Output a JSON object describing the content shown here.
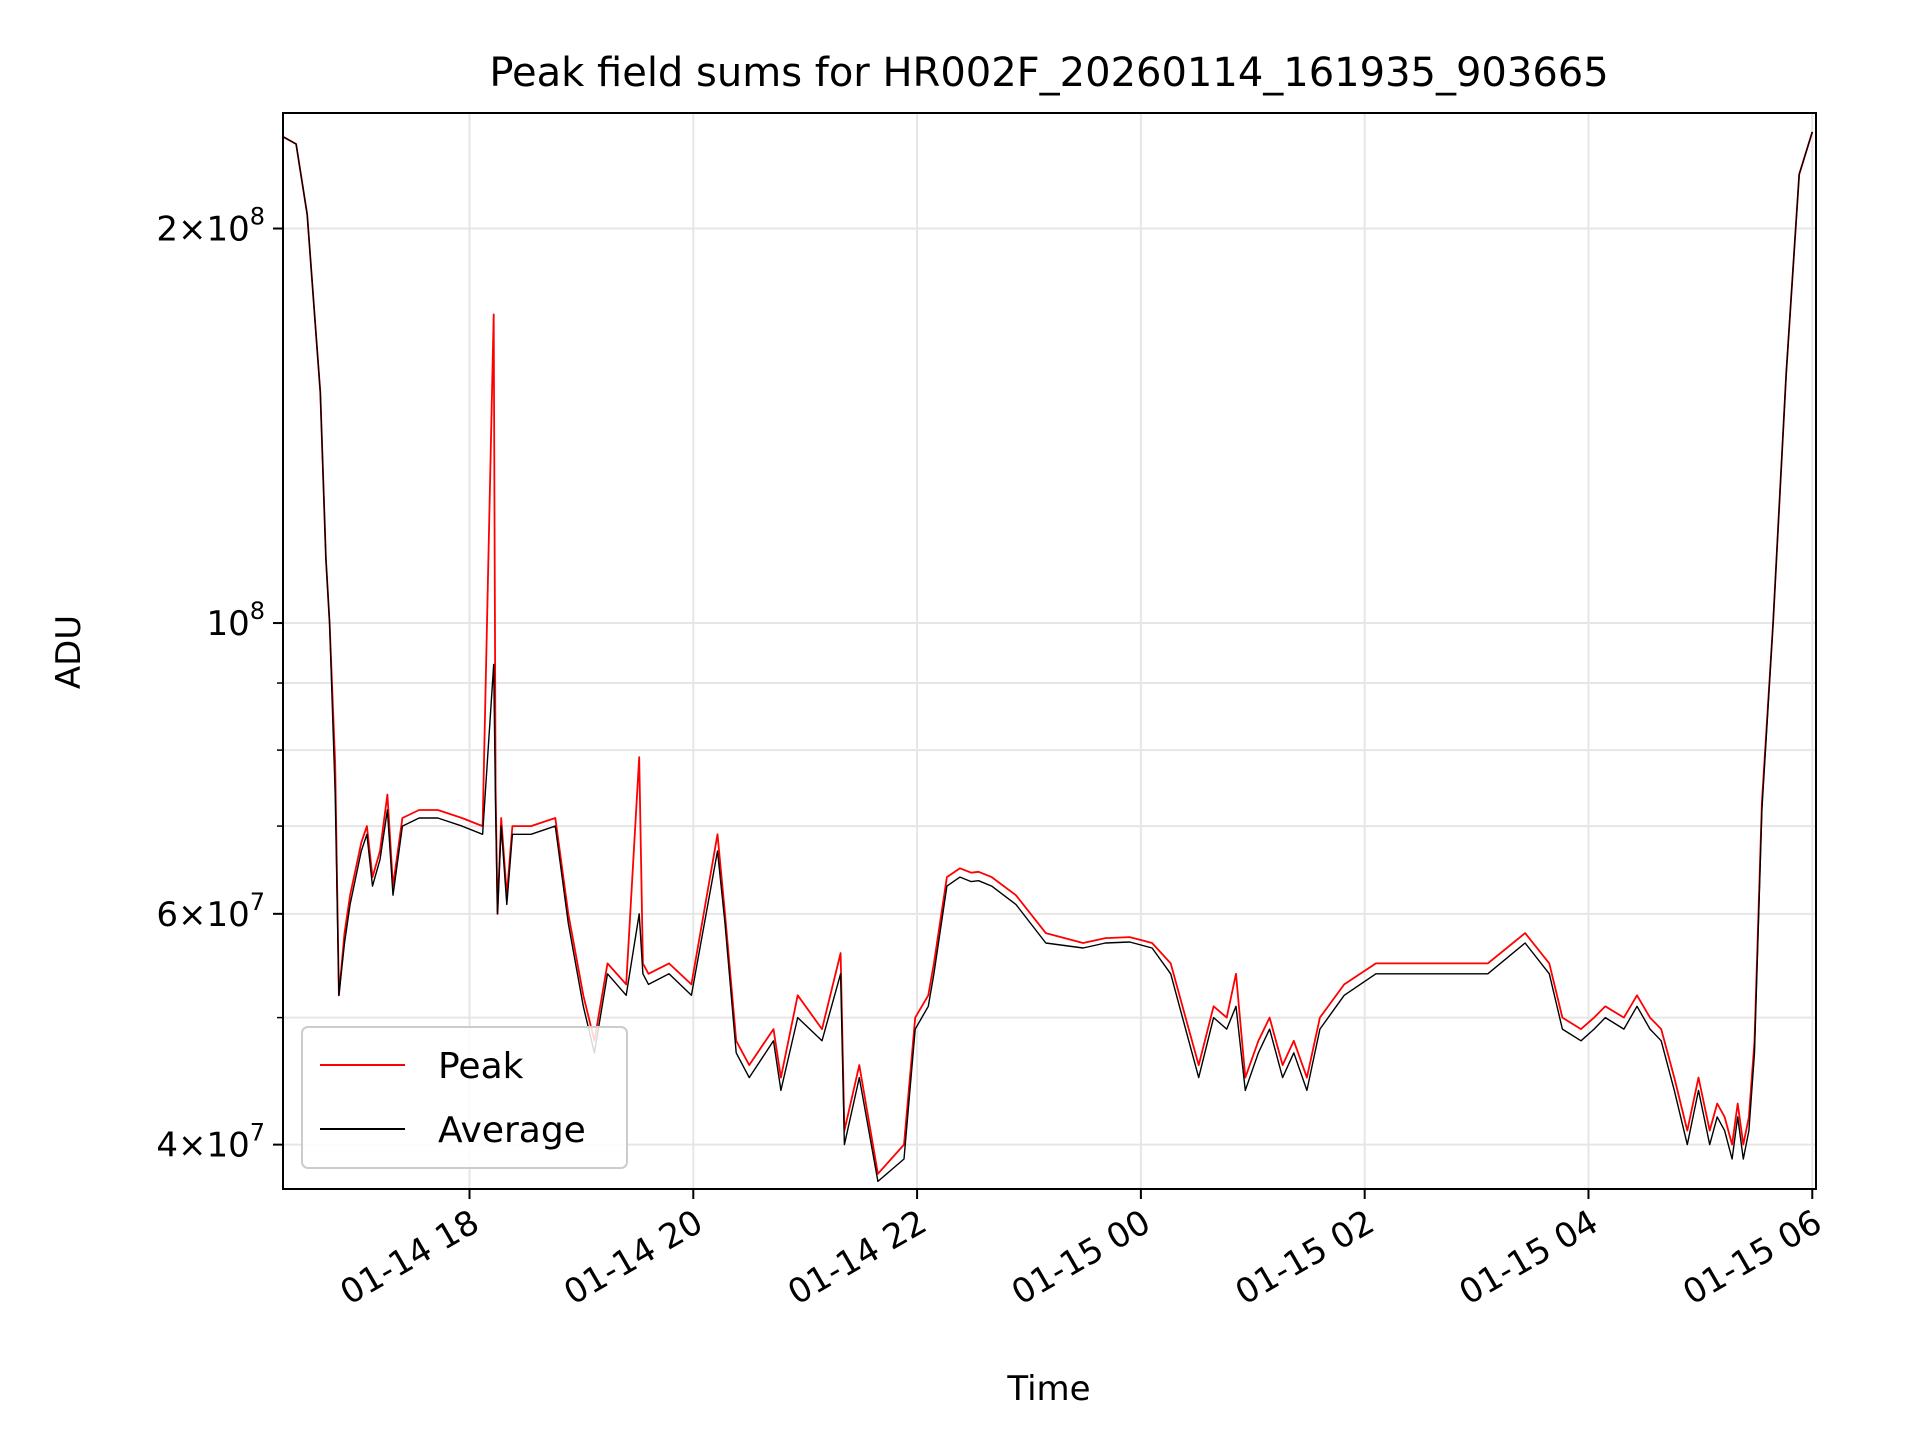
{
  "chart_data": {
    "type": "line",
    "title": "Peak field sums for HR002F_20260114_161935_903665",
    "xlabel": "Time",
    "ylabel": "ADU",
    "x_start": "01-14 16:20",
    "x_end": "01-15 06:00",
    "xlim": [
      "01-14 16:20",
      "01-15 06:02"
    ],
    "ylim": [
      37000000,
      245000000
    ],
    "yscale": "log",
    "grid": true,
    "legend_position": "lower-left",
    "x_ticks": [
      {
        "label": "01-14 18",
        "value": "01-14 18:00"
      },
      {
        "label": "01-14 20",
        "value": "01-14 20:00"
      },
      {
        "label": "01-14 22",
        "value": "01-14 22:00"
      },
      {
        "label": "01-15 00",
        "value": "01-15 00:00"
      },
      {
        "label": "01-15 02",
        "value": "01-15 02:00"
      },
      {
        "label": "01-15 04",
        "value": "01-15 04:00"
      },
      {
        "label": "01-15 06",
        "value": "01-15 06:00"
      }
    ],
    "y_ticks": [
      {
        "base": "4",
        "exp": "7",
        "value": 40000000
      },
      {
        "base": "6",
        "exp": "7",
        "value": 60000000
      },
      {
        "base": "",
        "exp": "8",
        "value": 100000000
      },
      {
        "base": "2",
        "exp": "8",
        "value": 200000000
      }
    ],
    "y_minor_ticks": [
      50000000,
      70000000,
      80000000,
      90000000
    ],
    "series": [
      {
        "name": "Peak",
        "color": "#ff0000",
        "x": [
          "01-14 16:20",
          "01-14 16:27",
          "01-14 16:33",
          "01-14 16:40",
          "01-14 16:43",
          "01-14 16:45",
          "01-14 16:48",
          "01-14 16:50",
          "01-14 16:53",
          "01-14 16:56",
          "01-14 17:02",
          "01-14 17:05",
          "01-14 17:08",
          "01-14 17:12",
          "01-14 17:16",
          "01-14 17:19",
          "01-14 17:24",
          "01-14 17:33",
          "01-14 17:43",
          "01-14 17:56",
          "01-14 18:07",
          "01-14 18:13",
          "01-14 18:14",
          "01-14 18:15",
          "01-14 18:17",
          "01-14 18:20",
          "01-14 18:23",
          "01-14 18:33",
          "01-14 18:46",
          "01-14 18:53",
          "01-14 19:01",
          "01-14 19:07",
          "01-14 19:14",
          "01-14 19:24",
          "01-14 19:31",
          "01-14 19:33",
          "01-14 19:36",
          "01-14 19:47",
          "01-14 19:59",
          "01-14 20:13",
          "01-14 20:17",
          "01-14 20:23",
          "01-14 20:30",
          "01-14 20:43",
          "01-14 20:47",
          "01-14 20:56",
          "01-14 21:09",
          "01-14 21:19",
          "01-14 21:21",
          "01-14 21:29",
          "01-14 21:39",
          "01-14 21:53",
          "01-14 21:59",
          "01-14 22:06",
          "01-14 22:09",
          "01-14 22:16",
          "01-14 22:23",
          "01-14 22:29",
          "01-14 22:33",
          "01-14 22:40",
          "01-14 22:53",
          "01-14 23:09",
          "01-14 23:29",
          "01-14 23:41",
          "01-14 23:54",
          "01-15 00:06",
          "01-15 00:16",
          "01-15 00:24",
          "01-15 00:31",
          "01-15 00:39",
          "01-15 00:46",
          "01-15 00:51",
          "01-15 00:56",
          "01-15 01:03",
          "01-15 01:09",
          "01-15 01:16",
          "01-15 01:22",
          "01-15 01:29",
          "01-15 01:36",
          "01-15 01:49",
          "01-15 02:06",
          "01-15 02:23",
          "01-15 02:46",
          "01-15 03:06",
          "01-15 03:26",
          "01-15 03:39",
          "01-15 03:46",
          "01-15 03:56",
          "01-15 04:03",
          "01-15 04:09",
          "01-15 04:19",
          "01-15 04:26",
          "01-15 04:33",
          "01-15 04:39",
          "01-15 04:46",
          "01-15 04:53",
          "01-15 04:59",
          "01-15 05:05",
          "01-15 05:09",
          "01-15 05:13",
          "01-15 05:17",
          "01-15 05:20",
          "01-15 05:23",
          "01-15 05:26",
          "01-15 05:29",
          "01-15 05:33",
          "01-15 05:39",
          "01-15 05:46",
          "01-15 05:53",
          "01-15 06:00"
        ],
        "y": [
          235000000,
          232000000,
          205000000,
          150000000,
          112000000,
          100000000,
          78000000,
          52000000,
          58000000,
          62000000,
          68000000,
          70000000,
          64000000,
          67000000,
          74000000,
          63000000,
          71000000,
          72000000,
          72000000,
          71000000,
          70000000,
          172000000,
          75000000,
          60000000,
          71000000,
          62000000,
          70000000,
          70000000,
          71000000,
          60000000,
          52000000,
          48000000,
          55000000,
          53000000,
          79000000,
          55000000,
          54000000,
          55000000,
          53000000,
          69000000,
          60000000,
          48000000,
          46000000,
          49000000,
          45000000,
          52000000,
          49000000,
          56000000,
          41000000,
          46000000,
          38000000,
          40000000,
          50000000,
          52000000,
          55000000,
          64000000,
          65000000,
          64500000,
          64600000,
          64000000,
          62000000,
          58000000,
          57000000,
          57500000,
          57600000,
          57000000,
          55000000,
          50000000,
          46000000,
          51000000,
          50000000,
          54000000,
          45000000,
          48000000,
          50000000,
          46000000,
          48000000,
          45000000,
          50000000,
          53000000,
          55000000,
          55000000,
          55000000,
          55000000,
          58000000,
          55000000,
          50000000,
          49000000,
          50000000,
          51000000,
          50000000,
          52000000,
          50000000,
          49000000,
          45000000,
          41000000,
          45000000,
          41000000,
          43000000,
          42000000,
          40000000,
          43000000,
          40000000,
          42000000,
          48000000,
          73000000,
          100000000,
          155000000,
          220000000,
          237000000
        ]
      },
      {
        "name": "Average",
        "color": "#000000",
        "x": [
          "01-14 16:20",
          "01-14 16:27",
          "01-14 16:33",
          "01-14 16:40",
          "01-14 16:43",
          "01-14 16:45",
          "01-14 16:48",
          "01-14 16:50",
          "01-14 16:53",
          "01-14 16:56",
          "01-14 17:02",
          "01-14 17:05",
          "01-14 17:08",
          "01-14 17:12",
          "01-14 17:16",
          "01-14 17:19",
          "01-14 17:24",
          "01-14 17:33",
          "01-14 17:43",
          "01-14 17:56",
          "01-14 18:07",
          "01-14 18:13",
          "01-14 18:14",
          "01-14 18:15",
          "01-14 18:17",
          "01-14 18:20",
          "01-14 18:23",
          "01-14 18:33",
          "01-14 18:46",
          "01-14 18:53",
          "01-14 19:01",
          "01-14 19:07",
          "01-14 19:14",
          "01-14 19:24",
          "01-14 19:31",
          "01-14 19:33",
          "01-14 19:36",
          "01-14 19:47",
          "01-14 19:59",
          "01-14 20:13",
          "01-14 20:17",
          "01-14 20:23",
          "01-14 20:30",
          "01-14 20:43",
          "01-14 20:47",
          "01-14 20:56",
          "01-14 21:09",
          "01-14 21:19",
          "01-14 21:21",
          "01-14 21:29",
          "01-14 21:39",
          "01-14 21:53",
          "01-14 21:59",
          "01-14 22:06",
          "01-14 22:09",
          "01-14 22:16",
          "01-14 22:23",
          "01-14 22:29",
          "01-14 22:33",
          "01-14 22:40",
          "01-14 22:53",
          "01-14 23:09",
          "01-14 23:29",
          "01-14 23:41",
          "01-14 23:54",
          "01-15 00:06",
          "01-15 00:16",
          "01-15 00:24",
          "01-15 00:31",
          "01-15 00:39",
          "01-15 00:46",
          "01-15 00:51",
          "01-15 00:56",
          "01-15 01:03",
          "01-15 01:09",
          "01-15 01:16",
          "01-15 01:22",
          "01-15 01:29",
          "01-15 01:36",
          "01-15 01:49",
          "01-15 02:06",
          "01-15 02:23",
          "01-15 02:46",
          "01-15 03:06",
          "01-15 03:26",
          "01-15 03:39",
          "01-15 03:46",
          "01-15 03:56",
          "01-15 04:03",
          "01-15 04:09",
          "01-15 04:19",
          "01-15 04:26",
          "01-15 04:33",
          "01-15 04:39",
          "01-15 04:46",
          "01-15 04:53",
          "01-15 04:59",
          "01-15 05:05",
          "01-15 05:09",
          "01-15 05:13",
          "01-15 05:17",
          "01-15 05:20",
          "01-15 05:23",
          "01-15 05:26",
          "01-15 05:29",
          "01-15 05:33",
          "01-15 05:39",
          "01-15 05:46",
          "01-15 05:53",
          "01-15 06:00"
        ],
        "y": [
          235000000,
          232000000,
          205000000,
          150000000,
          112000000,
          100000000,
          74000000,
          52000000,
          57000000,
          61000000,
          67000000,
          69000000,
          63000000,
          66000000,
          72000000,
          62000000,
          70000000,
          71000000,
          71000000,
          70000000,
          69000000,
          93000000,
          72000000,
          60000000,
          70000000,
          61000000,
          69000000,
          69000000,
          70000000,
          59000000,
          51000000,
          47000000,
          54000000,
          52000000,
          60000000,
          54000000,
          53000000,
          54000000,
          52000000,
          67000000,
          59000000,
          47000000,
          45000000,
          48000000,
          44000000,
          50000000,
          48000000,
          54000000,
          40000000,
          45000000,
          37500000,
          39000000,
          49000000,
          51000000,
          54000000,
          63000000,
          64000000,
          63500000,
          63600000,
          63000000,
          61000000,
          57000000,
          56500000,
          57000000,
          57100000,
          56500000,
          54000000,
          49000000,
          45000000,
          50000000,
          49000000,
          51000000,
          44000000,
          47000000,
          49000000,
          45000000,
          47000000,
          44000000,
          49000000,
          52000000,
          54000000,
          54000000,
          54000000,
          54000000,
          57000000,
          54000000,
          49000000,
          48000000,
          49000000,
          50000000,
          49000000,
          51000000,
          49000000,
          48000000,
          44000000,
          40000000,
          44000000,
          40000000,
          42000000,
          41000000,
          39000000,
          42000000,
          39000000,
          41000000,
          47000000,
          72000000,
          100000000,
          155000000,
          220000000,
          237000000
        ]
      }
    ]
  }
}
